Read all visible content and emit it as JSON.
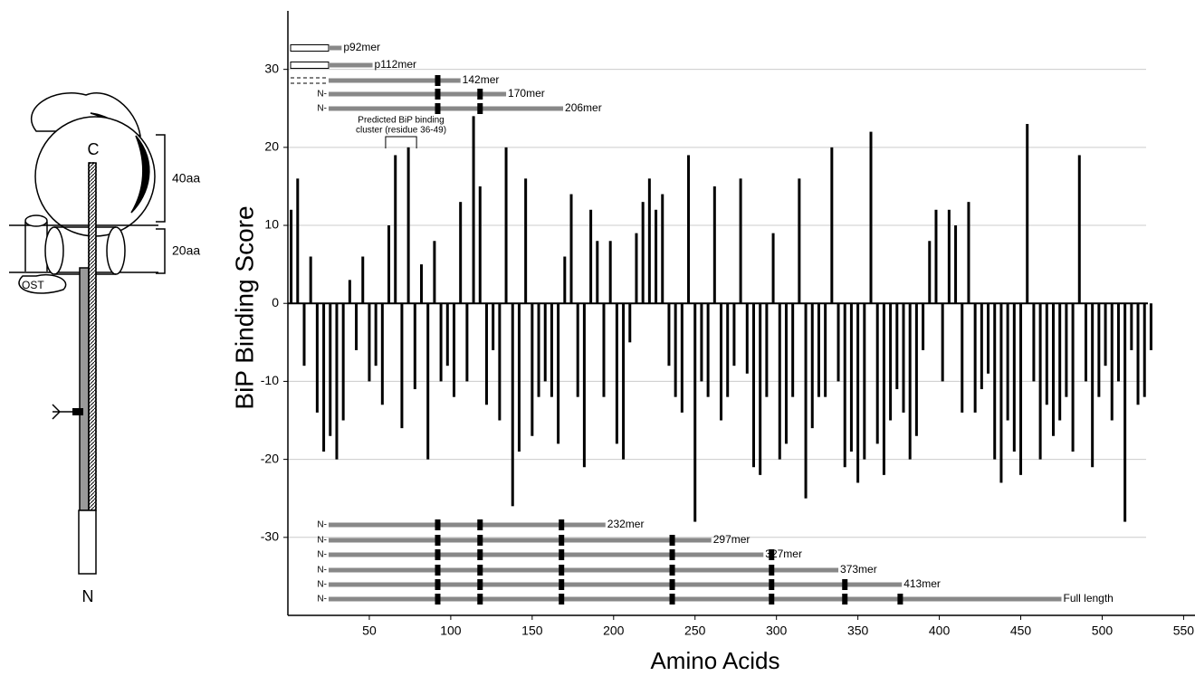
{
  "chart_data": {
    "type": "bar",
    "ylabel": "BiP Binding Score",
    "xlabel": "Amino Acids",
    "x": [
      2,
      6,
      10,
      14,
      18,
      22,
      26,
      30,
      34,
      38,
      42,
      46,
      50,
      54,
      58,
      62,
      66,
      70,
      74,
      78,
      82,
      86,
      90,
      94,
      98,
      102,
      106,
      110,
      114,
      118,
      122,
      126,
      130,
      134,
      138,
      142,
      146,
      150,
      154,
      158,
      162,
      166,
      170,
      174,
      178,
      182,
      186,
      190,
      194,
      198,
      202,
      206,
      210,
      214,
      218,
      222,
      226,
      230,
      234,
      238,
      242,
      246,
      250,
      254,
      258,
      262,
      266,
      270,
      274,
      278,
      282,
      286,
      290,
      294,
      298,
      302,
      306,
      310,
      314,
      318,
      322,
      326,
      330,
      334,
      338,
      342,
      346,
      350,
      354,
      358,
      362,
      366,
      370,
      374,
      378,
      382,
      386,
      390,
      394,
      398,
      402,
      406,
      410,
      414,
      418,
      422,
      426,
      430,
      434,
      438,
      442,
      446,
      450,
      454,
      458,
      462,
      466,
      470,
      474,
      478,
      482,
      486,
      490,
      494,
      498,
      502,
      506,
      510,
      514,
      518,
      522,
      526,
      530
    ],
    "values": [
      12,
      16,
      -8,
      6,
      -14,
      -19,
      -17,
      -20,
      -15,
      3,
      -6,
      6,
      -10,
      -8,
      -13,
      10,
      19,
      -16,
      20,
      -11,
      5,
      -20,
      8,
      -10,
      -8,
      -12,
      13,
      -10,
      24,
      15,
      -13,
      -6,
      -15,
      20,
      -26,
      -19,
      16,
      -17,
      -12,
      -10,
      -12,
      -18,
      6,
      14,
      -12,
      -21,
      12,
      8,
      -12,
      8,
      -18,
      -20,
      -5,
      9,
      13,
      16,
      12,
      14,
      -8,
      -12,
      -14,
      19,
      -28,
      -10,
      -12,
      15,
      -15,
      -12,
      -8,
      16,
      -9,
      -21,
      -22,
      -12,
      9,
      -20,
      -18,
      -12,
      16,
      -25,
      -16,
      -12,
      -12,
      20,
      -10,
      -21,
      -19,
      -23,
      -20,
      22,
      -18,
      -22,
      -15,
      -11,
      -14,
      -20,
      -17,
      -6,
      8,
      12,
      -10,
      12,
      10,
      -14,
      13,
      -14,
      -11,
      -9,
      -20,
      -23,
      -15,
      -19,
      -22,
      23,
      -10,
      -20,
      -13,
      -17,
      -15,
      -12,
      -19,
      19,
      -10,
      -21,
      -12,
      -8,
      -15,
      -10,
      -28,
      -6,
      -13,
      -12,
      -6
    ],
    "color": "#000000",
    "xlim": [
      0,
      557
    ],
    "ylim": [
      -40,
      37.5
    ],
    "xticks": [
      50,
      100,
      150,
      200,
      250,
      300,
      350,
      400,
      450,
      500,
      550
    ],
    "yticks": [
      -30,
      -20,
      -10,
      0,
      10,
      20,
      30
    ],
    "grid": true,
    "cluster": {
      "text": [
        "Predicted BiP binding",
        "cluster (residue 36-49)"
      ],
      "start": 60,
      "end": 79
    },
    "constructs": [
      {
        "label": "p92mer",
        "kind": "open",
        "end": 33,
        "sites": []
      },
      {
        "label": "p112mer",
        "kind": "open",
        "end": 52,
        "sites": []
      },
      {
        "label": "142mer",
        "kind": "dashed",
        "end": 106,
        "sites": [
          92
        ]
      },
      {
        "label": "170mer",
        "prefix": "N-",
        "end": 134,
        "sites": [
          92,
          118
        ]
      },
      {
        "label": "206mer",
        "prefix": "N-",
        "end": 169,
        "sites": [
          92,
          118
        ]
      },
      {
        "label": "232mer",
        "prefix": "N-",
        "end": 195,
        "sites": [
          92,
          118,
          168
        ]
      },
      {
        "label": "297mer",
        "prefix": "N-",
        "end": 260,
        "sites": [
          92,
          118,
          168,
          236
        ]
      },
      {
        "label": "327mer",
        "prefix": "N-",
        "end": 292,
        "sites": [
          92,
          118,
          168,
          236,
          297
        ]
      },
      {
        "label": "373mer",
        "prefix": "N-",
        "end": 338,
        "sites": [
          92,
          118,
          168,
          236,
          297
        ]
      },
      {
        "label": "413mer",
        "prefix": "N-",
        "end": 377,
        "sites": [
          92,
          118,
          168,
          236,
          297,
          342
        ]
      },
      {
        "label": "Full length",
        "prefix": "N-",
        "end": 475,
        "sites": [
          92,
          118,
          168,
          236,
          297,
          342,
          376
        ]
      }
    ]
  },
  "diagram": {
    "c": "C",
    "n": "N",
    "len40": "40aa",
    "len20": "20aa",
    "ost": "OST"
  }
}
